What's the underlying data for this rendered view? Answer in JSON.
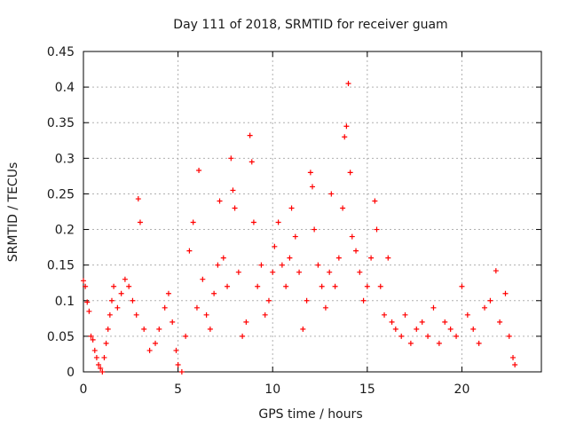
{
  "chart_data": {
    "type": "scatter",
    "title": "Day 111 of 2018, SRMTID for receiver guam",
    "xlabel": "GPS time / hours",
    "ylabel": "SRMTID / TECUs",
    "xlim": [
      0,
      24.2
    ],
    "ylim": [
      0,
      0.45
    ],
    "xticks": [
      0,
      5,
      10,
      15,
      20
    ],
    "xtick_labels": [
      "0",
      "5",
      "10",
      "15",
      "20"
    ],
    "yticks": [
      0,
      0.05,
      0.1,
      0.15,
      0.2,
      0.25,
      0.3,
      0.35,
      0.4,
      0.45
    ],
    "ytick_labels": [
      "0",
      "0.05",
      "0.1",
      "0.15",
      "0.2",
      "0.25",
      "0.3",
      "0.35",
      "0.4",
      "0.45"
    ],
    "grid": true,
    "marker": "+",
    "color": "#ff0000",
    "series": [
      {
        "name": "SRMTID",
        "points": [
          [
            0.0,
            0.128
          ],
          [
            0.1,
            0.12
          ],
          [
            0.2,
            0.098
          ],
          [
            0.3,
            0.085
          ],
          [
            0.4,
            0.05
          ],
          [
            0.5,
            0.045
          ],
          [
            0.6,
            0.03
          ],
          [
            0.7,
            0.02
          ],
          [
            0.8,
            0.01
          ],
          [
            0.9,
            0.005
          ],
          [
            1.0,
            0.0
          ],
          [
            1.1,
            0.02
          ],
          [
            1.2,
            0.04
          ],
          [
            1.3,
            0.06
          ],
          [
            1.4,
            0.08
          ],
          [
            1.5,
            0.1
          ],
          [
            1.6,
            0.12
          ],
          [
            1.8,
            0.09
          ],
          [
            2.0,
            0.11
          ],
          [
            2.2,
            0.13
          ],
          [
            2.4,
            0.12
          ],
          [
            2.6,
            0.1
          ],
          [
            2.8,
            0.08
          ],
          [
            2.9,
            0.243
          ],
          [
            3.0,
            0.21
          ],
          [
            3.2,
            0.06
          ],
          [
            3.5,
            0.03
          ],
          [
            3.8,
            0.04
          ],
          [
            4.0,
            0.06
          ],
          [
            4.3,
            0.09
          ],
          [
            4.5,
            0.11
          ],
          [
            4.7,
            0.07
          ],
          [
            4.9,
            0.03
          ],
          [
            5.0,
            0.01
          ],
          [
            5.2,
            0.0
          ],
          [
            5.4,
            0.05
          ],
          [
            5.6,
            0.17
          ],
          [
            5.8,
            0.21
          ],
          [
            6.0,
            0.09
          ],
          [
            6.1,
            0.283
          ],
          [
            6.3,
            0.13
          ],
          [
            6.5,
            0.08
          ],
          [
            6.7,
            0.06
          ],
          [
            6.9,
            0.11
          ],
          [
            7.1,
            0.15
          ],
          [
            7.2,
            0.24
          ],
          [
            7.4,
            0.16
          ],
          [
            7.6,
            0.12
          ],
          [
            7.8,
            0.3
          ],
          [
            7.9,
            0.255
          ],
          [
            8.0,
            0.23
          ],
          [
            8.2,
            0.14
          ],
          [
            8.4,
            0.05
          ],
          [
            8.6,
            0.07
          ],
          [
            8.8,
            0.332
          ],
          [
            8.9,
            0.295
          ],
          [
            9.0,
            0.21
          ],
          [
            9.2,
            0.12
          ],
          [
            9.4,
            0.15
          ],
          [
            9.6,
            0.08
          ],
          [
            9.8,
            0.1
          ],
          [
            10.0,
            0.14
          ],
          [
            10.1,
            0.176
          ],
          [
            10.3,
            0.21
          ],
          [
            10.5,
            0.15
          ],
          [
            10.7,
            0.12
          ],
          [
            10.9,
            0.16
          ],
          [
            11.0,
            0.23
          ],
          [
            11.2,
            0.19
          ],
          [
            11.4,
            0.14
          ],
          [
            11.6,
            0.06
          ],
          [
            11.8,
            0.1
          ],
          [
            12.0,
            0.28
          ],
          [
            12.1,
            0.26
          ],
          [
            12.2,
            0.2
          ],
          [
            12.4,
            0.15
          ],
          [
            12.6,
            0.12
          ],
          [
            12.8,
            0.09
          ],
          [
            13.0,
            0.14
          ],
          [
            13.1,
            0.25
          ],
          [
            13.3,
            0.12
          ],
          [
            13.5,
            0.16
          ],
          [
            13.7,
            0.23
          ],
          [
            13.8,
            0.33
          ],
          [
            13.9,
            0.345
          ],
          [
            14.0,
            0.405
          ],
          [
            14.1,
            0.28
          ],
          [
            14.2,
            0.19
          ],
          [
            14.4,
            0.17
          ],
          [
            14.6,
            0.14
          ],
          [
            14.8,
            0.1
          ],
          [
            15.0,
            0.12
          ],
          [
            15.2,
            0.16
          ],
          [
            15.4,
            0.24
          ],
          [
            15.5,
            0.2
          ],
          [
            15.7,
            0.12
          ],
          [
            15.9,
            0.08
          ],
          [
            16.1,
            0.16
          ],
          [
            16.3,
            0.07
          ],
          [
            16.5,
            0.06
          ],
          [
            16.8,
            0.05
          ],
          [
            17.0,
            0.08
          ],
          [
            17.3,
            0.04
          ],
          [
            17.6,
            0.06
          ],
          [
            17.9,
            0.07
          ],
          [
            18.2,
            0.05
          ],
          [
            18.5,
            0.09
          ],
          [
            18.8,
            0.04
          ],
          [
            19.1,
            0.07
          ],
          [
            19.4,
            0.06
          ],
          [
            19.7,
            0.05
          ],
          [
            20.0,
            0.12
          ],
          [
            20.3,
            0.08
          ],
          [
            20.6,
            0.06
          ],
          [
            20.9,
            0.04
          ],
          [
            21.2,
            0.09
          ],
          [
            21.5,
            0.1
          ],
          [
            21.8,
            0.142
          ],
          [
            22.0,
            0.07
          ],
          [
            22.3,
            0.11
          ],
          [
            22.5,
            0.05
          ],
          [
            22.7,
            0.02
          ],
          [
            22.8,
            0.01
          ]
        ]
      }
    ]
  }
}
